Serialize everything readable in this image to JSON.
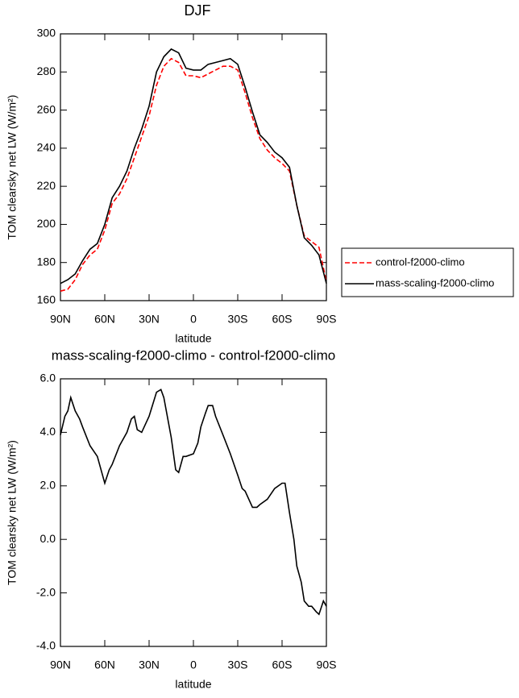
{
  "chart_data": [
    {
      "type": "line",
      "title": "DJF",
      "x_label": "latitude",
      "y_label": "TOM clearsky net LW (W/m²)",
      "x": [
        90,
        85,
        80,
        75,
        70,
        65,
        60,
        55,
        50,
        45,
        40,
        35,
        30,
        25,
        20,
        15,
        10,
        5,
        0,
        -5,
        -10,
        -15,
        -20,
        -25,
        -30,
        -35,
        -40,
        -45,
        -50,
        -55,
        -60,
        -65,
        -70,
        -75,
        -80,
        -85,
        -90
      ],
      "series": [
        {
          "name": "control-f2000-climo",
          "color": "#ff0000",
          "dash": true,
          "values": [
            165,
            166,
            171,
            179,
            184,
            187,
            197,
            211,
            216,
            224,
            235,
            246,
            257,
            273,
            283,
            287,
            285,
            278,
            278,
            277,
            279,
            281,
            283,
            283,
            281,
            269,
            256,
            245,
            239,
            235,
            232,
            228,
            210,
            194,
            191,
            188,
            170
          ]
        },
        {
          "name": "mass-scaling-f2000-climo",
          "color": "#000000",
          "dash": false,
          "values": [
            169,
            171,
            174,
            181,
            187,
            190,
            200,
            214,
            220,
            228,
            240,
            250,
            262,
            280,
            288,
            292,
            290,
            282,
            281,
            281,
            284,
            285,
            286,
            287,
            284,
            272,
            259,
            247,
            243,
            238,
            235,
            230,
            210,
            193,
            189,
            184,
            169
          ]
        }
      ],
      "xlim": [
        90,
        -90
      ],
      "xticks": [
        {
          "value": 90,
          "label": "90N"
        },
        {
          "value": 60,
          "label": "60N"
        },
        {
          "value": 30,
          "label": "30N"
        },
        0,
        {
          "value": -30,
          "label": "30S"
        },
        {
          "value": -60,
          "label": "60S"
        },
        {
          "value": -90,
          "label": "90S"
        }
      ],
      "ylim": [
        160,
        300
      ],
      "yticks": [
        160,
        180,
        200,
        220,
        240,
        260,
        280,
        300
      ],
      "legend": "right"
    },
    {
      "type": "line",
      "title": "mass-scaling-f2000-climo - control-f2000-climo",
      "x_label": "latitude",
      "y_label": "TOM clearsky net LW (W/m²)",
      "x": [
        90,
        87,
        85,
        83,
        80,
        77,
        75,
        70,
        65,
        62,
        60,
        57,
        55,
        50,
        45,
        42,
        40,
        38,
        35,
        30,
        25,
        22,
        20,
        15,
        12,
        10,
        7,
        5,
        0,
        -3,
        -5,
        -8,
        -10,
        -13,
        -15,
        -20,
        -25,
        -30,
        -33,
        -35,
        -40,
        -43,
        -45,
        -50,
        -55,
        -60,
        -62,
        -65,
        -68,
        -70,
        -73,
        -75,
        -78,
        -80,
        -83,
        -85,
        -88,
        -90
      ],
      "series": [
        {
          "name": "mass-scaling-f2000-climo - control-f2000-climo",
          "color": "#000000",
          "dash": false,
          "values": [
            3.9,
            4.6,
            4.8,
            5.3,
            4.8,
            4.5,
            4.2,
            3.5,
            3.1,
            2.5,
            2.1,
            2.6,
            2.8,
            3.5,
            4.0,
            4.5,
            4.6,
            4.1,
            4.0,
            4.6,
            5.5,
            5.6,
            5.3,
            3.8,
            2.6,
            2.5,
            3.1,
            3.1,
            3.2,
            3.6,
            4.2,
            4.7,
            5.0,
            5.0,
            4.6,
            3.9,
            3.2,
            2.4,
            1.9,
            1.8,
            1.2,
            1.2,
            1.3,
            1.5,
            1.9,
            2.1,
            2.1,
            1.0,
            0.0,
            -1.0,
            -1.6,
            -2.3,
            -2.5,
            -2.5,
            -2.7,
            -2.8,
            -2.3,
            -2.5
          ]
        }
      ],
      "xlim": [
        90,
        -90
      ],
      "xticks": [
        {
          "value": 90,
          "label": "90N"
        },
        {
          "value": 60,
          "label": "60N"
        },
        {
          "value": 30,
          "label": "30N"
        },
        0,
        {
          "value": -30,
          "label": "30S"
        },
        {
          "value": -60,
          "label": "60S"
        },
        {
          "value": -90,
          "label": "90S"
        }
      ],
      "ylim": [
        -4,
        6
      ],
      "yticks": [
        {
          "value": -4,
          "label": "-4.0"
        },
        {
          "value": -2,
          "label": "-2.0"
        },
        {
          "value": 0,
          "label": "0.0"
        },
        {
          "value": 2,
          "label": "2.0"
        },
        {
          "value": 4,
          "label": "4.0"
        },
        {
          "value": 6,
          "label": "6.0"
        }
      ]
    }
  ]
}
